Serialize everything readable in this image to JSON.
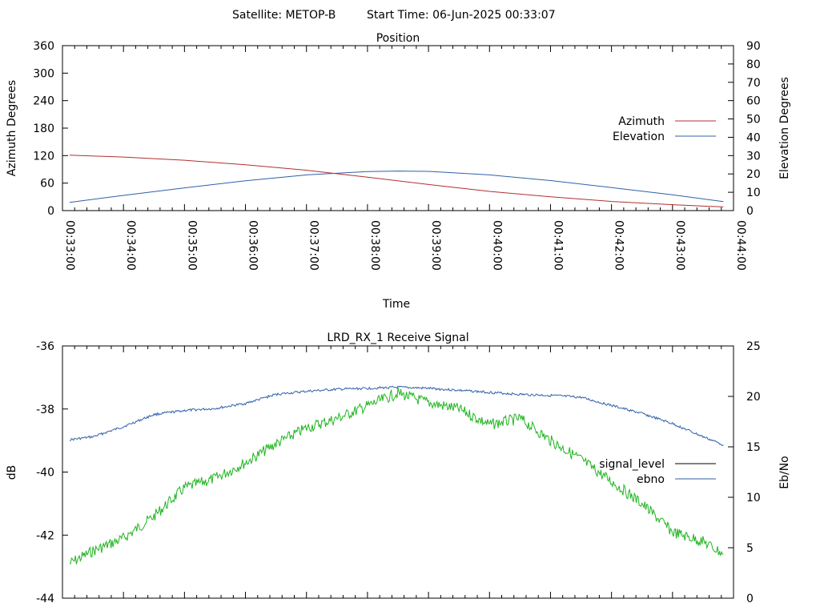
{
  "header": {
    "satellite": "Satellite: METOP-B",
    "start_time": "Start Time: 06-Jun-2025 00:33:07"
  },
  "colors": {
    "azimuth": "#b03030",
    "elevation": "#3060a8",
    "signal_level": "#1fb51f",
    "ebno": "#3060a8",
    "signal_level_legend": "#000000"
  },
  "chart_data": [
    {
      "type": "line",
      "title": "Position",
      "xlabel": "Time",
      "ylabel": "Azimuth Degrees",
      "y2label": "Elevation Degrees",
      "xlim": [
        "00:33:00",
        "00:44:00"
      ],
      "ylim": [
        0,
        360
      ],
      "y2lim": [
        0,
        90
      ],
      "x_ticks": [
        "00:33:00",
        "00:34:00",
        "00:35:00",
        "00:36:00",
        "00:37:00",
        "00:38:00",
        "00:39:00",
        "00:40:00",
        "00:41:00",
        "00:42:00",
        "00:43:00",
        "00:44:00"
      ],
      "y_ticks": [
        0,
        60,
        120,
        180,
        240,
        300,
        360
      ],
      "y2_ticks": [
        0,
        10,
        20,
        30,
        40,
        50,
        60,
        70,
        80,
        90
      ],
      "legend_position": "right",
      "grid": false,
      "series": [
        {
          "name": "Azimuth",
          "axis": "left",
          "x": [
            "00:33:07",
            "00:34:00",
            "00:35:00",
            "00:36:00",
            "00:37:00",
            "00:38:00",
            "00:39:00",
            "00:40:00",
            "00:41:00",
            "00:42:00",
            "00:43:00",
            "00:43:50"
          ],
          "values": [
            121,
            117,
            110,
            100,
            88,
            73,
            57,
            42,
            30,
            20,
            13,
            8
          ]
        },
        {
          "name": "Elevation",
          "axis": "right",
          "x": [
            "00:33:07",
            "00:34:00",
            "00:35:00",
            "00:36:00",
            "00:37:00",
            "00:38:00",
            "00:38:30",
            "00:39:00",
            "00:40:00",
            "00:41:00",
            "00:42:00",
            "00:43:00",
            "00:43:50"
          ],
          "values": [
            4.5,
            8.3,
            12.4,
            16.3,
            19.5,
            21.3,
            21.6,
            21.4,
            19.5,
            16.4,
            12.6,
            8.6,
            4.9
          ]
        }
      ]
    },
    {
      "type": "line",
      "title": "LRD_RX_1 Receive Signal",
      "ylabel": "dB",
      "y2label": "Eb/No",
      "ylim": [
        -44,
        -36
      ],
      "y2lim": [
        0,
        25
      ],
      "y_ticks": [
        -44,
        -42,
        -40,
        -38,
        -36
      ],
      "y2_ticks": [
        0,
        5,
        10,
        15,
        20,
        25
      ],
      "legend_position": "right",
      "grid": false,
      "series": [
        {
          "name": "signal_level",
          "axis": "left",
          "x": [
            "00:33:07",
            "00:33:30",
            "00:34:00",
            "00:34:30",
            "00:35:00",
            "00:35:30",
            "00:36:00",
            "00:36:30",
            "00:37:00",
            "00:37:30",
            "00:38:00",
            "00:38:30",
            "00:39:00",
            "00:39:30",
            "00:40:00",
            "00:40:30",
            "00:41:00",
            "00:41:30",
            "00:42:00",
            "00:42:30",
            "00:43:00",
            "00:43:30",
            "00:43:50"
          ],
          "values": [
            -42.9,
            -42.5,
            -42.1,
            -41.4,
            -40.5,
            -40.2,
            -39.7,
            -39.1,
            -38.6,
            -38.3,
            -37.9,
            -37.5,
            -37.8,
            -38.0,
            -38.5,
            -38.3,
            -39.0,
            -39.6,
            -40.3,
            -41.0,
            -41.9,
            -42.2,
            -42.6
          ]
        },
        {
          "name": "ebno",
          "axis": "right",
          "x": [
            "00:33:07",
            "00:33:30",
            "00:34:00",
            "00:34:30",
            "00:35:00",
            "00:35:30",
            "00:36:00",
            "00:36:30",
            "00:37:00",
            "00:37:30",
            "00:38:00",
            "00:38:30",
            "00:39:00",
            "00:39:30",
            "00:40:00",
            "00:40:30",
            "00:41:00",
            "00:41:30",
            "00:42:00",
            "00:42:30",
            "00:43:00",
            "00:43:30",
            "00:43:50"
          ],
          "values": [
            15.7,
            16.0,
            17.0,
            18.2,
            18.6,
            18.8,
            19.3,
            20.2,
            20.5,
            20.7,
            20.8,
            20.9,
            20.8,
            20.6,
            20.4,
            20.2,
            20.1,
            19.9,
            19.1,
            18.3,
            17.3,
            16.0,
            15.2
          ]
        }
      ]
    }
  ]
}
